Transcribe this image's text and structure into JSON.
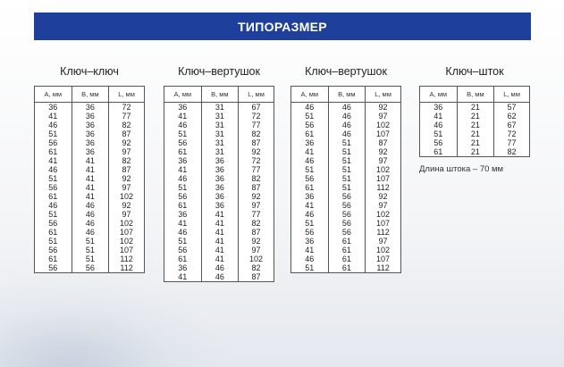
{
  "banner": {
    "title": "ТИПОРАЗМЕР"
  },
  "headers": [
    "А, мм",
    "В, мм",
    "L, мм"
  ],
  "groups": [
    {
      "title": "Ключ–ключ",
      "rows": [
        [
          "36",
          "36",
          "72"
        ],
        [
          "41",
          "36",
          "77"
        ],
        [
          "46",
          "36",
          "82"
        ],
        [
          "51",
          "36",
          "87"
        ],
        [
          "56",
          "36",
          "92"
        ],
        [
          "61",
          "36",
          "97"
        ],
        [
          "41",
          "41",
          "82"
        ],
        [
          "46",
          "41",
          "87"
        ],
        [
          "51",
          "41",
          "92"
        ],
        [
          "56",
          "41",
          "97"
        ],
        [
          "61",
          "41",
          "102"
        ],
        [
          "46",
          "46",
          "92"
        ],
        [
          "51",
          "46",
          "97"
        ],
        [
          "56",
          "46",
          "102"
        ],
        [
          "61",
          "46",
          "107"
        ],
        [
          "51",
          "51",
          "102"
        ],
        [
          "56",
          "51",
          "107"
        ],
        [
          "61",
          "51",
          "112"
        ],
        [
          "56",
          "56",
          "112"
        ]
      ]
    },
    {
      "title": "Ключ–вертушок",
      "rows": [
        [
          "36",
          "31",
          "67"
        ],
        [
          "41",
          "31",
          "72"
        ],
        [
          "46",
          "31",
          "77"
        ],
        [
          "51",
          "31",
          "82"
        ],
        [
          "56",
          "31",
          "87"
        ],
        [
          "61",
          "31",
          "92"
        ],
        [
          "36",
          "36",
          "72"
        ],
        [
          "41",
          "36",
          "77"
        ],
        [
          "46",
          "36",
          "82"
        ],
        [
          "51",
          "36",
          "87"
        ],
        [
          "56",
          "36",
          "92"
        ],
        [
          "61",
          "36",
          "97"
        ],
        [
          "36",
          "41",
          "77"
        ],
        [
          "41",
          "41",
          "82"
        ],
        [
          "46",
          "41",
          "87"
        ],
        [
          "51",
          "41",
          "92"
        ],
        [
          "56",
          "41",
          "97"
        ],
        [
          "61",
          "41",
          "102"
        ],
        [
          "36",
          "46",
          "82"
        ],
        [
          "41",
          "46",
          "87"
        ]
      ]
    },
    {
      "title": "Ключ–вертушок",
      "rows": [
        [
          "46",
          "46",
          "92"
        ],
        [
          "51",
          "46",
          "97"
        ],
        [
          "56",
          "46",
          "102"
        ],
        [
          "61",
          "46",
          "107"
        ],
        [
          "36",
          "51",
          "87"
        ],
        [
          "41",
          "51",
          "92"
        ],
        [
          "46",
          "51",
          "97"
        ],
        [
          "51",
          "51",
          "102"
        ],
        [
          "56",
          "51",
          "107"
        ],
        [
          "61",
          "51",
          "112"
        ],
        [
          "36",
          "56",
          "92"
        ],
        [
          "41",
          "56",
          "97"
        ],
        [
          "46",
          "56",
          "102"
        ],
        [
          "51",
          "56",
          "107"
        ],
        [
          "56",
          "56",
          "112"
        ],
        [
          "36",
          "61",
          "97"
        ],
        [
          "41",
          "61",
          "102"
        ],
        [
          "46",
          "61",
          "107"
        ],
        [
          "51",
          "61",
          "112"
        ]
      ]
    },
    {
      "title": "Ключ–шток",
      "rows": [
        [
          "36",
          "21",
          "57"
        ],
        [
          "41",
          "21",
          "62"
        ],
        [
          "46",
          "21",
          "67"
        ],
        [
          "51",
          "21",
          "72"
        ],
        [
          "56",
          "21",
          "77"
        ],
        [
          "61",
          "21",
          "82"
        ]
      ],
      "note": "Длина штока – 70 мм"
    }
  ]
}
